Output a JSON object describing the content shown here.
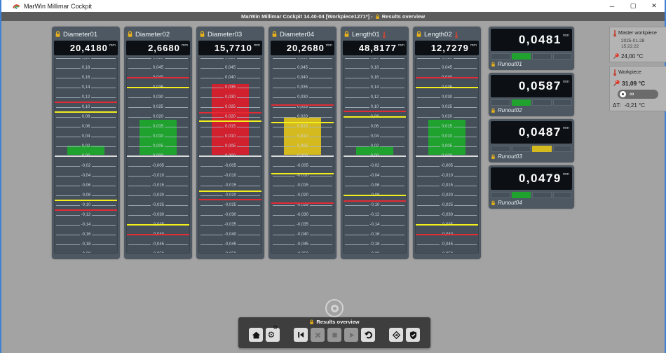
{
  "window": {
    "title": "MarWin Millimar Cockpit"
  },
  "icons": {
    "minimize": "─",
    "maximize": "▢",
    "close": "✕"
  },
  "header": {
    "left_text": "MarWin Millimar Cockpit 14.40-04 [Workpiece1271*] -",
    "view_title": "Results overview"
  },
  "colors": {
    "ok_green": "#1fa32e",
    "warn_yellow": "#d4ba1f",
    "error_red": "#d1202e",
    "limit_yellow": "#f2ef1d",
    "limit_red": "#e22b35",
    "lock_yellow": "#e8b21a"
  },
  "gauges": [
    {
      "name": "Diameter01",
      "has_thermometer": false,
      "value": "20,4180",
      "unit": "mm",
      "scale_max": 0.2,
      "ticks": [
        "0,20",
        "0,18",
        "0,16",
        "0,14",
        "0,12",
        "0,10",
        "0,08",
        "0,06",
        "0,04",
        "0,02",
        "0,00",
        "-0,02",
        "-0,04",
        "-0,06",
        "-0,08",
        "-0,10",
        "-0,12",
        "-0,14",
        "-0,16",
        "-0,18",
        "-0,20"
      ],
      "limits": {
        "yellow_high": 0.09,
        "yellow_low": -0.09,
        "red_high": 0.11,
        "red_low": -0.11
      },
      "bar": {
        "to": 0.018,
        "color": "#1fa32e"
      }
    },
    {
      "name": "Diameter02",
      "has_thermometer": false,
      "value": "2,6680",
      "unit": "mm",
      "scale_max": 0.05,
      "ticks": [
        "0,050",
        "0,045",
        "0,040",
        "0,035",
        "0,030",
        "0,025",
        "0,020",
        "0,015",
        "0,010",
        "0,005",
        "0,000",
        "-0,005",
        "-0,010",
        "-0,015",
        "-0,020",
        "-0,025",
        "-0,030",
        "-0,035",
        "-0,040",
        "-0,045",
        "-0,050"
      ],
      "limits": {
        "yellow_high": 0.035,
        "yellow_low": -0.035,
        "red_high": 0.04,
        "red_low": -0.04
      },
      "bar": {
        "to": 0.018,
        "color": "#1fa32e"
      }
    },
    {
      "name": "Diameter03",
      "has_thermometer": false,
      "value": "15,7710",
      "unit": "mm",
      "scale_max": 0.05,
      "ticks": [
        "0,050",
        "0,045",
        "0,040",
        "0,035",
        "0,030",
        "0,025",
        "0,020",
        "0,015",
        "0,010",
        "0,005",
        "0,000",
        "-0,005",
        "-0,010",
        "-0,015",
        "-0,020",
        "-0,025",
        "-0,030",
        "-0,035",
        "-0,040",
        "-0,045",
        "-0,050"
      ],
      "limits": {
        "yellow_high": 0.018,
        "yellow_low": -0.018,
        "red_high": 0.022,
        "red_low": -0.022
      },
      "bar": {
        "to": 0.036,
        "color": "#d1202e"
      }
    },
    {
      "name": "Diameter04",
      "has_thermometer": false,
      "value": "20,2680",
      "unit": "mm",
      "scale_max": 0.05,
      "ticks": [
        "0,050",
        "0,045",
        "0,040",
        "0,035",
        "0,030",
        "0,025",
        "0,020",
        "0,015",
        "0,010",
        "0,005",
        "0,000",
        "-0,005",
        "-0,010",
        "-0,015",
        "-0,020",
        "-0,025",
        "-0,030",
        "-0,035",
        "-0,040",
        "-0,045",
        "-0,050"
      ],
      "limits": {
        "yellow_high": 0.017,
        "yellow_low": -0.009,
        "red_high": 0.026,
        "red_low": -0.024
      },
      "bar": {
        "to": 0.019,
        "color": "#d4ba1f"
      }
    },
    {
      "name": "Length01",
      "has_thermometer": true,
      "value": "48,8177",
      "unit": "mm",
      "scale_max": 0.2,
      "ticks": [
        "0,20",
        "0,18",
        "0,16",
        "0,14",
        "0,12",
        "0,10",
        "0,08",
        "0,06",
        "0,04",
        "0,02",
        "0,00",
        "-0,02",
        "-0,04",
        "-0,06",
        "-0,08",
        "-0,10",
        "-0,12",
        "-0,14",
        "-0,16",
        "-0,18",
        "-0,20"
      ],
      "limits": {
        "yellow_high": 0.08,
        "yellow_low": -0.08,
        "red_high": 0.092,
        "red_low": -0.092
      },
      "bar": {
        "to": 0.017,
        "color": "#1fa32e"
      }
    },
    {
      "name": "Length02",
      "has_thermometer": true,
      "value": "12,7279",
      "unit": "mm",
      "scale_max": 0.05,
      "ticks": [
        "0,050",
        "0,045",
        "0,040",
        "0,035",
        "0,030",
        "0,025",
        "0,020",
        "0,015",
        "0,010",
        "0,005",
        "0,000",
        "-0,005",
        "-0,010",
        "-0,015",
        "-0,020",
        "-0,025",
        "-0,030",
        "-0,035",
        "-0,040",
        "-0,045",
        "-0,050"
      ],
      "limits": {
        "yellow_high": 0.035,
        "yellow_low": -0.035,
        "red_high": 0.04,
        "red_low": -0.04
      },
      "bar": {
        "to": 0.018,
        "color": "#1fa32e"
      }
    }
  ],
  "runouts": [
    {
      "name": "Runout01",
      "value": "0,0481",
      "unit": "mm",
      "segments": 4,
      "active_segment": 1,
      "segment_color": "#1fa32e"
    },
    {
      "name": "Runout02",
      "value": "0,0587",
      "unit": "mm",
      "segments": 4,
      "active_segment": 1,
      "segment_color": "#1fa32e"
    },
    {
      "name": "Runout03",
      "value": "0,0487",
      "unit": "mm",
      "segments": 4,
      "active_segment": 2,
      "segment_color": "#d4ba1f"
    },
    {
      "name": "Runout04",
      "value": "0,0479",
      "unit": "mm",
      "segments": 4,
      "active_segment": 1,
      "segment_color": "#1fa32e"
    }
  ],
  "sidebar": {
    "master": {
      "title": "Master workpiece",
      "date": "2025-01-28",
      "time": "15:22:22",
      "temperature": "24,00 °C"
    },
    "workpiece": {
      "title": "Workpiece",
      "temperature": "31,09 °C",
      "counter": "∞",
      "delta_label": "ΔT:",
      "delta_value": "-0,21 °C"
    }
  },
  "toolbar": {
    "title": "Results overview",
    "buttons": [
      {
        "name": "home",
        "icon": "home-icon",
        "enabled": true,
        "group_start": false
      },
      {
        "name": "settings",
        "icon": "gears-icon",
        "enabled": true,
        "group_start": false
      },
      {
        "name": "skip-to-start",
        "icon": "skip-to-start-icon",
        "enabled": true,
        "group_start": true
      },
      {
        "name": "cancel",
        "icon": "cancel-icon",
        "enabled": false,
        "group_start": false
      },
      {
        "name": "stop",
        "icon": "stop-icon",
        "enabled": false,
        "group_start": false
      },
      {
        "name": "play",
        "icon": "play-icon",
        "enabled": false,
        "group_start": false
      },
      {
        "name": "undo",
        "icon": "undo-icon",
        "enabled": true,
        "group_start": false
      },
      {
        "name": "reference",
        "icon": "diamond-arrow-icon",
        "enabled": true,
        "group_start": true
      },
      {
        "name": "approve",
        "icon": "shield-check-icon",
        "enabled": true,
        "group_start": false
      }
    ]
  }
}
